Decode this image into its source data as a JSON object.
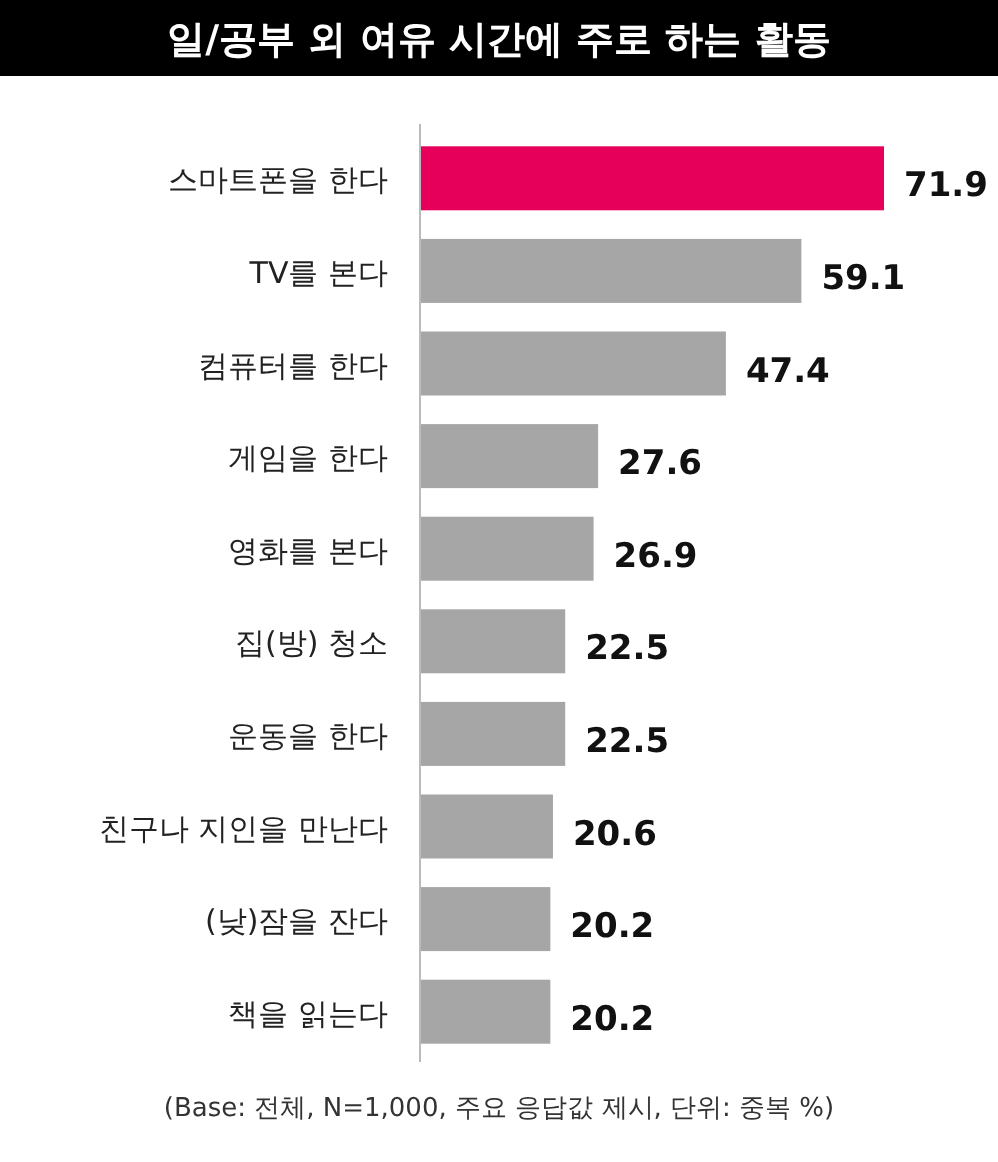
{
  "chart_data": {
    "type": "bar",
    "orientation": "horizontal",
    "title": "일/공부 외 여유 시간에 주로 하는 활동",
    "categories": [
      "스마트폰을 한다",
      "TV를 본다",
      "컴퓨터를 한다",
      "게임을 한다",
      "영화를 본다",
      "집(방) 청소",
      "운동을 한다",
      "친구나 지인을 만난다",
      "(낮)잠을 잔다",
      "책을 읽는다"
    ],
    "values": [
      71.9,
      59.1,
      47.4,
      27.6,
      26.9,
      22.5,
      22.5,
      20.6,
      20.2,
      20.2
    ],
    "colors": [
      "#e6005a",
      "#a6a6a6",
      "#a6a6a6",
      "#a6a6a6",
      "#a6a6a6",
      "#a6a6a6",
      "#a6a6a6",
      "#a6a6a6",
      "#a6a6a6",
      "#a6a6a6"
    ],
    "data_labels": true,
    "annotations": [
      "(Base: 전체, N=1,000, 주요 응답값 제시, 단위: 중복 %)"
    ]
  }
}
